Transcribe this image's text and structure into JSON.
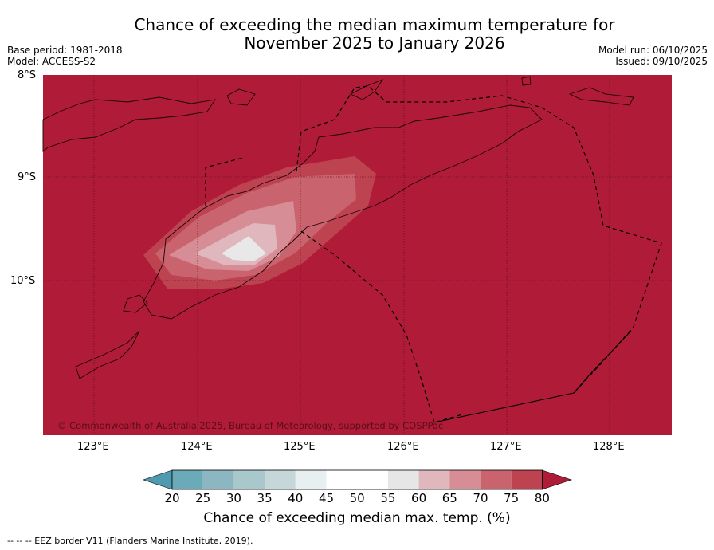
{
  "title_line1": "Chance of exceeding the median maximum temperature for",
  "title_line2": "November 2025 to January 2026",
  "base_period": "Base period: 1981-2018",
  "model": "Model: ACCESS-S2",
  "model_run": "Model run: 06/10/2025",
  "issued": "Issued: 09/10/2025",
  "lat_labels": [
    "8°S",
    "9°S",
    "10°S"
  ],
  "lon_labels": [
    "123°E",
    "124°E",
    "125°E",
    "126°E",
    "127°E",
    "128°E"
  ],
  "copyright": "© Commonwealth of Australia 2025, Bureau of Meteorology, supported by COSPPac",
  "colorbar": {
    "ticks": [
      "20",
      "25",
      "30",
      "35",
      "40",
      "45",
      "50",
      "55",
      "60",
      "65",
      "70",
      "75",
      "80"
    ],
    "colors": [
      "#6baab9",
      "#8bb6c2",
      "#a8c8cc",
      "#c6d7da",
      "#e8eff1",
      "#ffffff",
      "#ffffff",
      "#e6e6e6",
      "#dfb7bd",
      "#d78d95",
      "#c9636d",
      "#bd4351"
    ],
    "under_color": "#4e9bb0",
    "over_color": "#b01c38",
    "label": "Chance of exceeding median max. temp. (%)"
  },
  "footnote": "--  --  -- EEZ border V11 (Flanders Marine Institute, 2019).",
  "colors": {
    "sea": "#b01c38",
    "c80": "#b01c38",
    "c75": "#bd4351",
    "c70": "#c9636d",
    "c65": "#d78d95",
    "c60": "#dfb7bd",
    "c55": "#e6e6e6",
    "grid": "#5a0c1c",
    "coast": "#1a0306"
  }
}
